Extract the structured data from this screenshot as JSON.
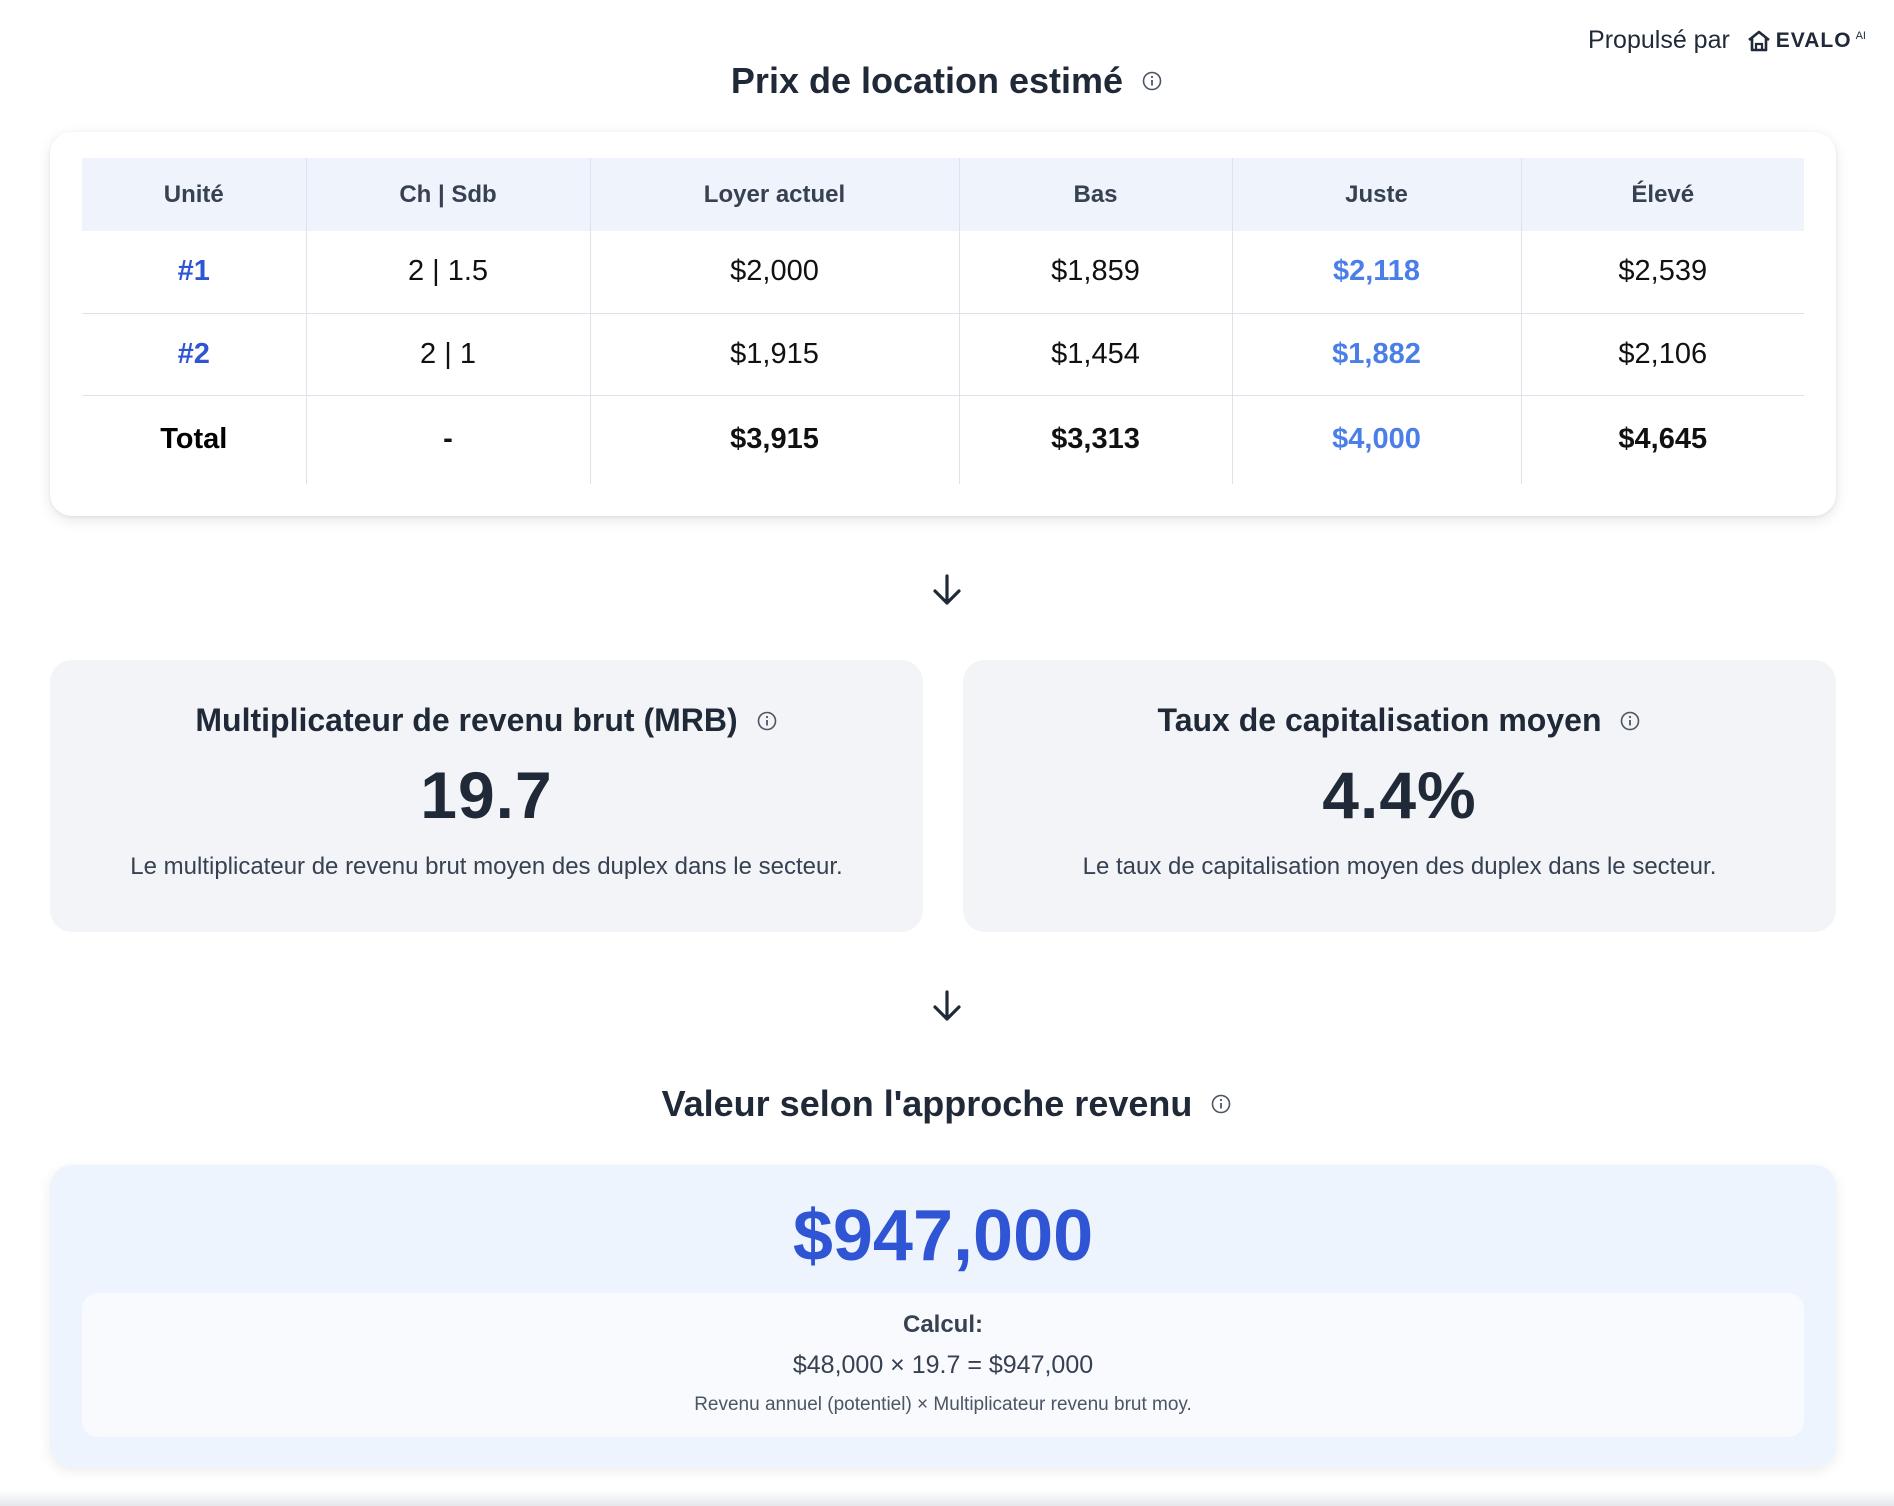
{
  "powered_by": {
    "label": "Propulsé par",
    "brand": "EVALO",
    "brand_sup": "AI"
  },
  "rent_section": {
    "title": "Prix de location estimé",
    "headers": [
      "Unité",
      "Ch | Sdb",
      "Loyer actuel",
      "Bas",
      "Juste",
      "Élevé"
    ],
    "rows": [
      {
        "unit": "#1",
        "rooms": "2 | 1.5",
        "current": "$2,000",
        "low": "$1,859",
        "fair": "$2,118",
        "high": "$2,539"
      },
      {
        "unit": "#2",
        "rooms": "2 | 1",
        "current": "$1,915",
        "low": "$1,454",
        "fair": "$1,882",
        "high": "$2,106"
      }
    ],
    "total": {
      "label": "Total",
      "rooms": "-",
      "current": "$3,915",
      "low": "$3,313",
      "fair": "$4,000",
      "high": "$4,645"
    }
  },
  "metrics": {
    "mrb": {
      "title": "Multiplicateur de revenu brut (MRB)",
      "value": "19.7",
      "description": "Le multiplicateur de revenu brut moyen des duplex dans le secteur."
    },
    "cap_rate": {
      "title": "Taux de capitalisation moyen",
      "value": "4.4%",
      "description": "Le taux de capitalisation moyen des duplex dans le secteur."
    }
  },
  "income_value": {
    "title": "Valeur selon l'approche revenu",
    "value": "$947,000",
    "calc_label": "Calcul:",
    "calc_formula": "$48,000 × 19.7 = $947,000",
    "calc_note": "Revenu annuel (potentiel) × Multiplicateur revenu brut moy."
  },
  "colors": {
    "accent": "#2f55d4",
    "fair": "#4a7ee8",
    "text": "#1f2937",
    "header_bg": "#eef3fc",
    "card_bg": "#f2f4f7"
  },
  "icons": [
    "info-icon",
    "arrow-down-icon",
    "house-logo-icon"
  ]
}
